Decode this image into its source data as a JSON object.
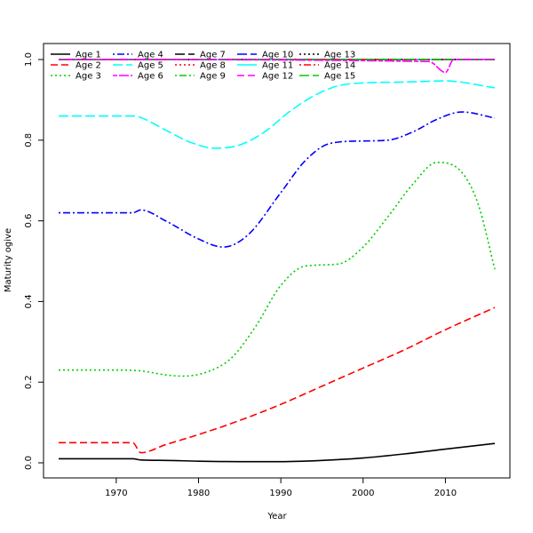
{
  "chart_data": {
    "type": "line",
    "title": "",
    "xlabel": "Year",
    "ylabel": "Maturity ogive",
    "xlim": [
      1963,
      2016
    ],
    "ylim": [
      0.0,
      1.0
    ],
    "xticks": [
      1970,
      1980,
      1990,
      2000,
      2010
    ],
    "yticks": [
      0.0,
      0.2,
      0.4,
      0.6,
      0.8,
      1.0
    ],
    "xtick_labels": [
      "1970",
      "1980",
      "1990",
      "2000",
      "2010"
    ],
    "ytick_labels": [
      "0.0",
      "0.2",
      "0.4",
      "0.6",
      "0.8",
      "1.0"
    ],
    "grid": false,
    "legend_position": "top-left",
    "legend_columns": 5,
    "series": [
      {
        "name": "Age 1",
        "color": "#000000",
        "dash": "solid",
        "x": [
          1963,
          1972,
          1973,
          1976,
          1980,
          1985,
          1990,
          1995,
          2000,
          2005,
          2010,
          2016
        ],
        "y": [
          0.01,
          0.01,
          0.007,
          0.006,
          0.004,
          0.003,
          0.003,
          0.006,
          0.012,
          0.022,
          0.034,
          0.048
        ]
      },
      {
        "name": "Age 2",
        "color": "#ff0000",
        "dash": "dashed",
        "x": [
          1963,
          1972,
          1973,
          1976,
          1980,
          1985,
          1990,
          1995,
          2000,
          2005,
          2010,
          2016
        ],
        "y": [
          0.05,
          0.05,
          0.025,
          0.045,
          0.07,
          0.105,
          0.145,
          0.19,
          0.235,
          0.28,
          0.33,
          0.385
        ]
      },
      {
        "name": "Age 3",
        "color": "#00cd00",
        "dash": "dotted",
        "x": [
          1963,
          1970,
          1973,
          1976,
          1978,
          1981,
          1984,
          1987,
          1990,
          1993,
          1997,
          2000,
          2003,
          2006,
          2009,
          2012,
          2014,
          2016
        ],
        "y": [
          0.23,
          0.23,
          0.228,
          0.218,
          0.215,
          0.225,
          0.26,
          0.34,
          0.44,
          0.488,
          0.493,
          0.535,
          0.61,
          0.69,
          0.745,
          0.72,
          0.64,
          0.48
        ]
      },
      {
        "name": "Age 4",
        "color": "#0000ff",
        "dash": "dotdash",
        "x": [
          1963,
          1972,
          1973,
          1976,
          1980,
          1983,
          1986,
          1990,
          1993,
          1996,
          2000,
          2003,
          2006,
          2009,
          2012,
          2016
        ],
        "y": [
          0.62,
          0.62,
          0.627,
          0.6,
          0.555,
          0.535,
          0.565,
          0.67,
          0.75,
          0.792,
          0.798,
          0.8,
          0.82,
          0.852,
          0.87,
          0.855
        ]
      },
      {
        "name": "Age 5",
        "color": "#00ffff",
        "dash": "longdash",
        "x": [
          1963,
          1972,
          1973,
          1976,
          1979,
          1982,
          1985,
          1988,
          1991,
          1994,
          1997,
          2000,
          2005,
          2010,
          2016
        ],
        "y": [
          0.86,
          0.86,
          0.856,
          0.825,
          0.795,
          0.78,
          0.788,
          0.82,
          0.87,
          0.91,
          0.935,
          0.942,
          0.944,
          0.947,
          0.93
        ]
      },
      {
        "name": "Age 6",
        "color": "#ff00ff",
        "dash": "twodash",
        "x": [
          1963,
          2008,
          2010,
          2011,
          2016
        ],
        "y": [
          1.0,
          0.995,
          0.968,
          1.0,
          1.0
        ]
      },
      {
        "name": "Age 7",
        "color": "#000000",
        "dash": "longdash",
        "x": [
          1963,
          2016
        ],
        "y": [
          1.0,
          1.0
        ]
      },
      {
        "name": "Age 8",
        "color": "#ff0000",
        "dash": "dotted",
        "x": [
          1963,
          2016
        ],
        "y": [
          1.0,
          1.0
        ]
      },
      {
        "name": "Age 9",
        "color": "#00cd00",
        "dash": "dotdash",
        "x": [
          1963,
          2016
        ],
        "y": [
          1.0,
          1.0
        ]
      },
      {
        "name": "Age 10",
        "color": "#0000ff",
        "dash": "longdash",
        "x": [
          1963,
          2016
        ],
        "y": [
          1.0,
          1.0
        ]
      },
      {
        "name": "Age 11",
        "color": "#00ffff",
        "dash": "solid",
        "x": [
          1963,
          2016
        ],
        "y": [
          1.0,
          1.0
        ]
      },
      {
        "name": "Age 12",
        "color": "#ff00ff",
        "dash": "dashed",
        "x": [
          1963,
          2016
        ],
        "y": [
          1.0,
          1.0
        ]
      },
      {
        "name": "Age 13",
        "color": "#000000",
        "dash": "dotted",
        "x": [
          1963,
          2016
        ],
        "y": [
          1.0,
          1.0
        ]
      },
      {
        "name": "Age 14",
        "color": "#ff0000",
        "dash": "dotdash",
        "x": [
          1963,
          2016
        ],
        "y": [
          1.0,
          1.0
        ]
      },
      {
        "name": "Age 15",
        "color": "#00cd00",
        "dash": "longdash",
        "x": [
          1963,
          2016
        ],
        "y": [
          1.0,
          1.0
        ]
      }
    ]
  }
}
